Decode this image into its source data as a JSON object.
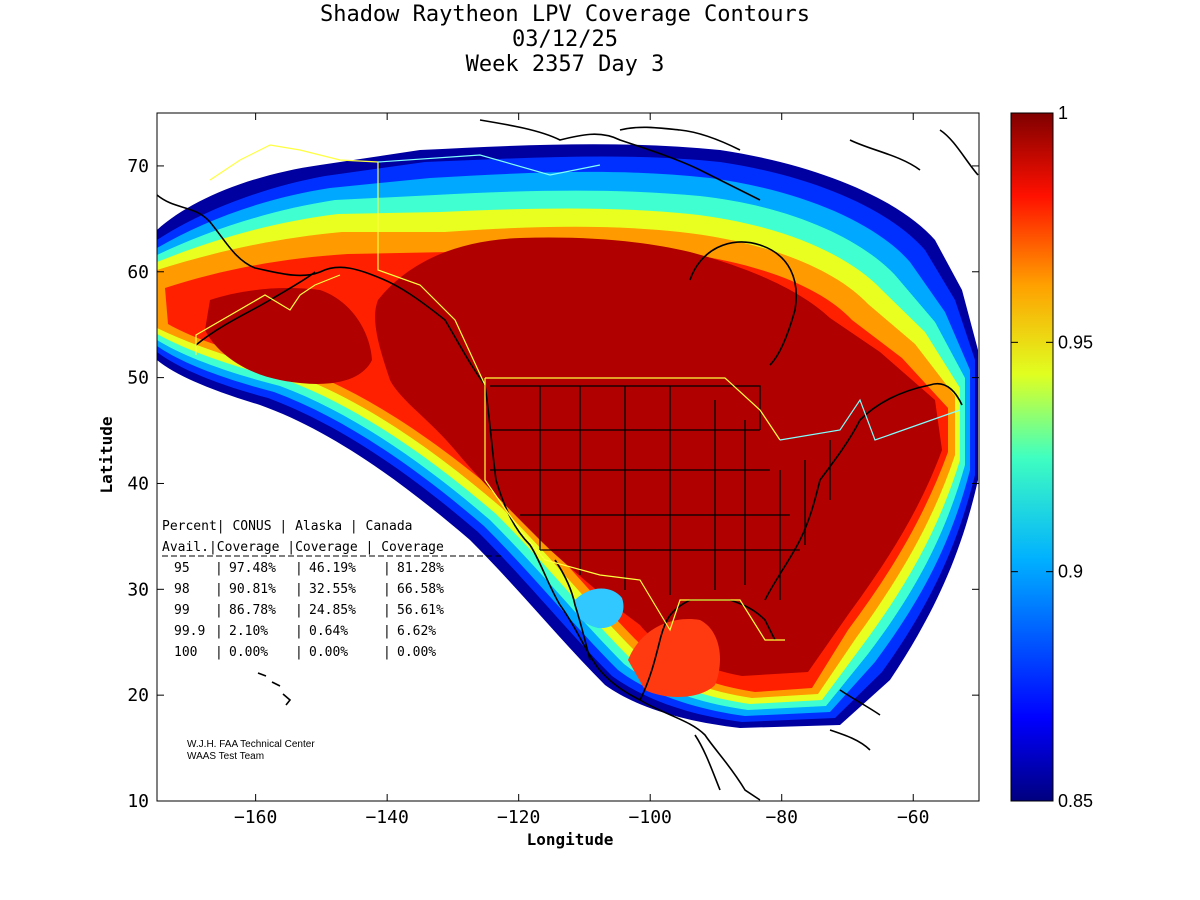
{
  "titles": [
    "Shadow Raytheon LPV Coverage Contours",
    "03/12/25",
    "Week 2357 Day 3"
  ],
  "axes": {
    "xlabel": "Longitude",
    "ylabel": "Latitude",
    "xticks": [
      -160,
      -140,
      -120,
      -100,
      -80,
      -60
    ],
    "yticks": [
      10,
      20,
      30,
      40,
      50,
      60,
      70
    ],
    "xlim": [
      -175,
      -50
    ],
    "ylim": [
      10,
      75
    ]
  },
  "colorbar": {
    "ticks": [
      "1",
      "0.95",
      "0.9",
      "0.85"
    ],
    "range": [
      0.85,
      1
    ]
  },
  "stats_table": {
    "header1": [
      "Percent",
      "CONUS",
      "Alaska",
      "Canada"
    ],
    "header2": [
      "Avail.",
      "Coverage",
      "Coverage",
      "Coverage"
    ],
    "rows": [
      [
        "95",
        "97.48%",
        "46.19%",
        "81.28%"
      ],
      [
        "98",
        "90.81%",
        "32.55%",
        "66.58%"
      ],
      [
        "99",
        "86.78%",
        "24.85%",
        "56.61%"
      ],
      [
        "99.9",
        "2.10%",
        "0.64%",
        "6.62%"
      ],
      [
        "100",
        "0.00%",
        "0.00%",
        "0.00%"
      ]
    ]
  },
  "credits": [
    "W.J.H. FAA Technical Center",
    "WAAS Test Team"
  ]
}
